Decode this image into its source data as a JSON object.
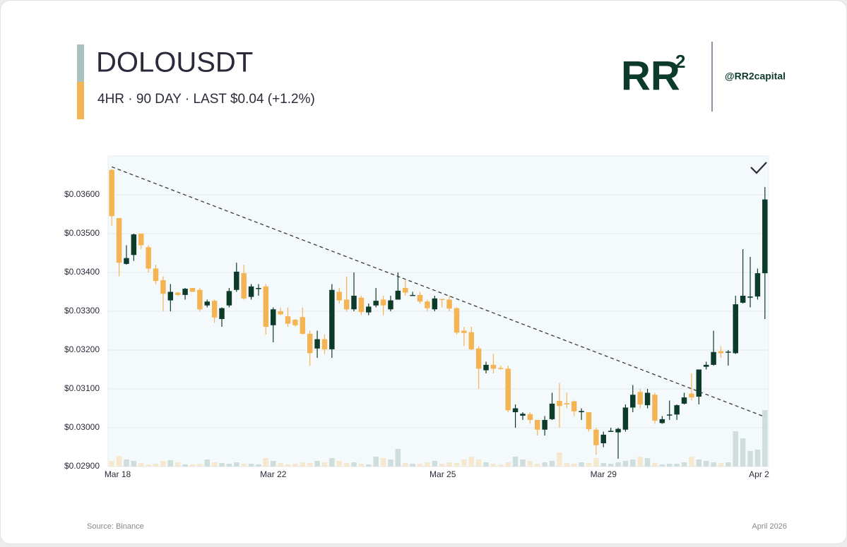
{
  "header": {
    "title": "DOLOUSDT",
    "subtitle": "4HR · 90 DAY · LAST $0.04 (+1.2%)"
  },
  "brand": {
    "logo": "RR",
    "logo_superscript": "2",
    "handle": "@RR2capital"
  },
  "footer": {
    "source": "Source: Binance",
    "date": "April 2026"
  },
  "chart_data": {
    "type": "candlestick",
    "up_color": "#0d3b2a",
    "down_color": "#f5b453",
    "volume_up_color": "#cfdedb",
    "volume_down_color": "#f6e8cf",
    "open": [
      0.03664,
      0.0354,
      0.03422,
      0.03445,
      0.035,
      0.03465,
      0.0341,
      0.0338,
      0.03328,
      0.03348,
      0.03342,
      0.0336,
      0.03355,
      0.03315,
      0.03327,
      0.0328,
      0.03315,
      0.03355,
      0.03398,
      0.03337,
      0.03358,
      0.03364,
      0.03264,
      0.033,
      0.03287,
      0.03278,
      0.03285,
      0.03242,
      0.03204,
      0.03228,
      0.03202,
      0.0335,
      0.0333,
      0.03305,
      0.03335,
      0.03297,
      0.03315,
      0.0333,
      0.03305,
      0.0333,
      0.0336,
      0.0334,
      0.03342,
      0.03325,
      0.03305,
      0.03332,
      0.0333,
      0.03308,
      0.0325,
      0.03246,
      0.03204,
      0.03148,
      0.03162,
      0.03154,
      0.03152,
      0.0304,
      0.03031,
      0.03035,
      0.0302,
      0.02995,
      0.03022,
      0.03069,
      0.03063,
      0.03068,
      0.0304,
      0.0304,
      0.02995,
      0.0296,
      0.0299,
      0.02988,
      0.02995,
      0.03052,
      0.03092,
      0.03058,
      0.03085,
      0.03012,
      0.03032,
      0.03034,
      0.03062,
      0.03088,
      0.0308,
      0.03157,
      0.03162,
      0.03197,
      0.03194,
      0.03192,
      0.03322,
      0.03335,
      0.03338,
      0.03398
    ],
    "high": [
      0.03667,
      0.0354,
      0.0347,
      0.035,
      0.035,
      0.0347,
      0.0342,
      0.0339,
      0.0337,
      0.0335,
      0.0336,
      0.0336,
      0.0336,
      0.0333,
      0.0333,
      0.0331,
      0.0336,
      0.03425,
      0.0342,
      0.0337,
      0.0337,
      0.0337,
      0.0331,
      0.0331,
      0.0331,
      0.0328,
      0.0331,
      0.0325,
      0.0325,
      0.0324,
      0.0337,
      0.0336,
      0.0339,
      0.034,
      0.0334,
      0.0332,
      0.0336,
      0.0334,
      0.0334,
      0.034,
      0.0338,
      0.0335,
      0.0335,
      0.0333,
      0.0334,
      0.0333,
      0.0334,
      0.0331,
      0.0326,
      0.0326,
      0.0321,
      0.0317,
      0.0319,
      0.0316,
      0.0316,
      0.0306,
      0.0304,
      0.0304,
      0.0302,
      0.0303,
      0.0309,
      0.03115,
      0.0309,
      0.0307,
      0.0305,
      0.0304,
      0.03,
      0.0299,
      0.03,
      0.03,
      0.0306,
      0.0311,
      0.031,
      0.031,
      0.0309,
      0.0303,
      0.0307,
      0.0306,
      0.0309,
      0.0314,
      0.0315,
      0.0317,
      0.0325,
      0.0321,
      0.032,
      0.0334,
      0.0346,
      0.0344,
      0.0341,
      0.0362
    ],
    "low": [
      0.0352,
      0.0339,
      0.0342,
      0.0343,
      0.0346,
      0.034,
      0.0337,
      0.033,
      0.033,
      0.0334,
      0.0333,
      0.0335,
      0.033,
      0.0331,
      0.0327,
      0.0326,
      0.0331,
      0.0335,
      0.0333,
      0.0333,
      0.0334,
      0.0324,
      0.0322,
      0.0329,
      0.0326,
      0.0326,
      0.0324,
      0.0316,
      0.0318,
      0.0319,
      0.0318,
      0.0332,
      0.033,
      0.033,
      0.0329,
      0.0329,
      0.0331,
      0.0329,
      0.033,
      0.0333,
      0.0334,
      0.0334,
      0.0332,
      0.033,
      0.033,
      0.0331,
      0.033,
      0.0324,
      0.0321,
      0.032,
      0.031,
      0.0314,
      0.0314,
      0.0315,
      0.0304,
      0.03,
      0.0302,
      0.0301,
      0.0298,
      0.0298,
      0.0302,
      0.03,
      0.0305,
      0.0303,
      0.0302,
      0.0299,
      0.0293,
      0.0295,
      0.0299,
      0.0292,
      0.0299,
      0.0304,
      0.0305,
      0.0305,
      0.0301,
      0.0301,
      0.0302,
      0.0302,
      0.0306,
      0.0307,
      0.0306,
      0.0315,
      0.0316,
      0.0318,
      0.0316,
      0.0319,
      0.0332,
      0.0331,
      0.0333,
      0.0328
    ],
    "close": [
      0.03545,
      0.03425,
      0.03437,
      0.03498,
      0.0347,
      0.0341,
      0.03378,
      0.03345,
      0.0335,
      0.03342,
      0.03358,
      0.0335,
      0.03305,
      0.03325,
      0.03284,
      0.03308,
      0.03352,
      0.03402,
      0.03333,
      0.03364,
      0.0336,
      0.0326,
      0.03305,
      0.03292,
      0.03268,
      0.03264,
      0.03242,
      0.03192,
      0.03228,
      0.03202,
      0.03355,
      0.03328,
      0.03305,
      0.0334,
      0.03298,
      0.03312,
      0.03327,
      0.03315,
      0.03328,
      0.03353,
      0.03348,
      0.03342,
      0.03325,
      0.03308,
      0.03333,
      0.0333,
      0.03307,
      0.03245,
      0.03244,
      0.03202,
      0.03152,
      0.03162,
      0.03152,
      0.03152,
      0.03045,
      0.0305,
      0.03036,
      0.0302,
      0.02995,
      0.0302,
      0.03062,
      0.03056,
      0.0306,
      0.03042,
      0.03043,
      0.02996,
      0.02955,
      0.02982,
      0.02992,
      0.02997,
      0.03052,
      0.03085,
      0.0306,
      0.0309,
      0.03018,
      0.03022,
      0.03034,
      0.03058,
      0.03078,
      0.03078,
      0.0315,
      0.03162,
      0.03195,
      0.03192,
      0.03196,
      0.03318,
      0.0334,
      0.03338,
      0.03398,
      0.03588
    ],
    "volume": [
      8,
      15,
      10,
      8,
      5,
      3,
      4,
      8,
      9,
      6,
      3,
      3,
      4,
      10,
      6,
      5,
      4,
      6,
      4,
      4,
      3,
      12,
      8,
      5,
      3,
      4,
      6,
      5,
      8,
      6,
      12,
      8,
      5,
      6,
      4,
      3,
      14,
      12,
      10,
      25,
      5,
      4,
      4,
      6,
      8,
      4,
      6,
      5,
      10,
      14,
      10,
      6,
      4,
      3,
      6,
      14,
      10,
      8,
      4,
      6,
      8,
      20,
      5,
      4,
      6,
      5,
      12,
      5,
      4,
      6,
      8,
      10,
      14,
      12,
      5,
      3,
      4,
      4,
      6,
      14,
      10,
      8,
      6,
      5,
      6,
      50,
      40,
      22,
      24,
      80
    ],
    "volume_ylim": [
      0,
      100
    ],
    "trendline": {
      "x": [
        0,
        89
      ],
      "y": [
        0.03672,
        0.03028
      ]
    },
    "xlim": [
      -0.5,
      89.5
    ],
    "xticks": [
      {
        "value": 0.8,
        "label": "Mar 18"
      },
      {
        "value": 22,
        "label": "Mar 22"
      },
      {
        "value": 45.1,
        "label": "Mar 25"
      },
      {
        "value": 67,
        "label": "Mar 29"
      },
      {
        "value": 88.2,
        "label": "Apr 2"
      }
    ],
    "ylim": [
      0.029,
      0.037
    ],
    "yticks": [
      {
        "value": 0.029,
        "label": "$0.02900"
      },
      {
        "value": 0.03,
        "label": "$0.03000"
      },
      {
        "value": 0.031,
        "label": "$0.03100"
      },
      {
        "value": 0.032,
        "label": "$0.03200"
      },
      {
        "value": 0.033,
        "label": "$0.03300"
      },
      {
        "value": 0.034,
        "label": "$0.03400"
      },
      {
        "value": 0.035,
        "label": "$0.03500"
      },
      {
        "value": 0.036,
        "label": "$0.03600"
      }
    ],
    "grid": true
  }
}
